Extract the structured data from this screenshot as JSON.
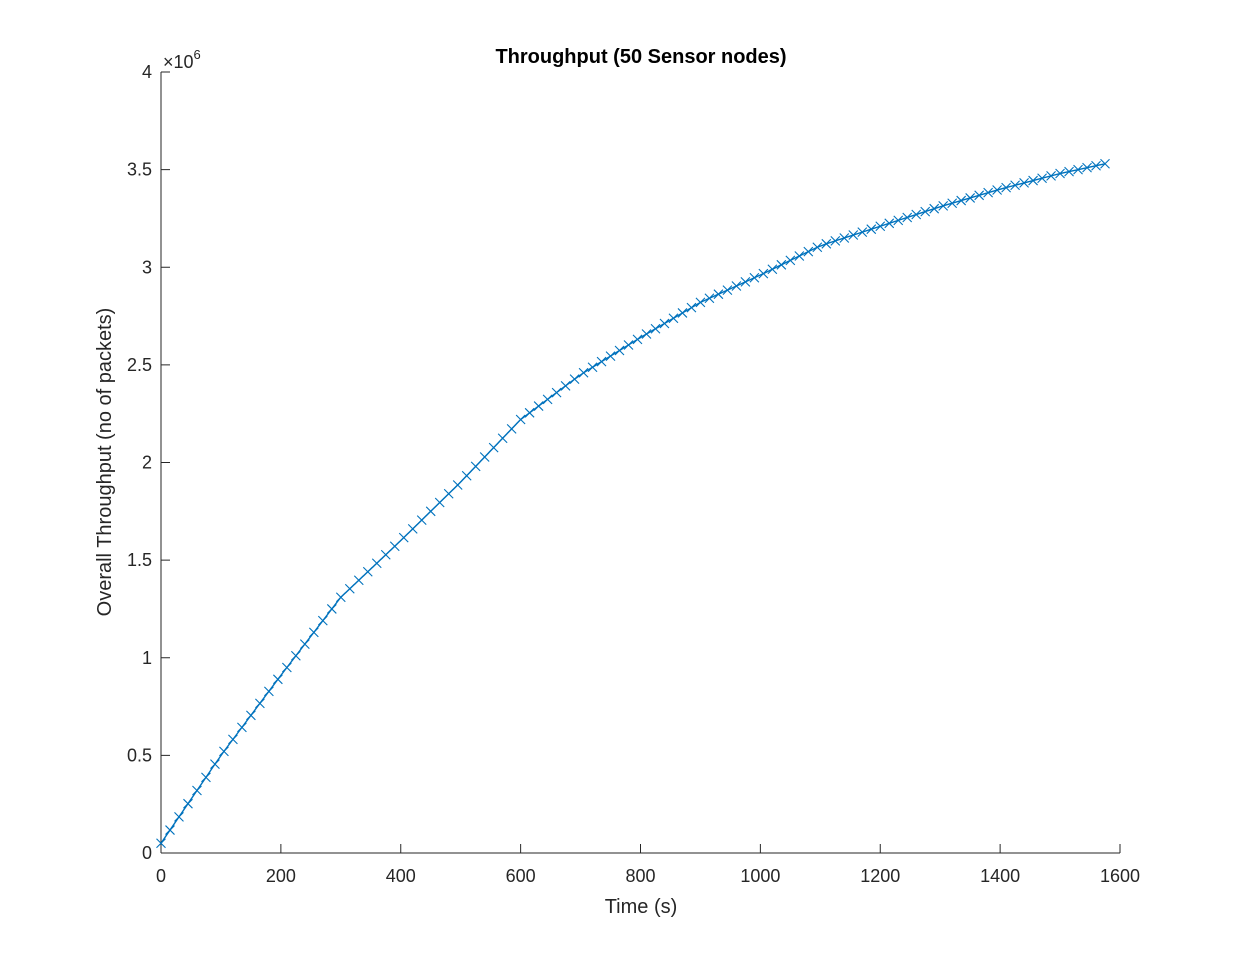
{
  "chart_data": {
    "type": "line",
    "title": "Throughput (50 Sensor nodes)",
    "xlabel": "Time (s)",
    "ylabel": "Overall Throughput (no of packets)",
    "y_multiplier_base": "×10",
    "y_multiplier_exp": "6",
    "xlim": [
      0,
      1600
    ],
    "ylim": [
      0,
      4
    ],
    "y_scale_factor": 1000000,
    "xticks": [
      "0",
      "200",
      "400",
      "600",
      "800",
      "1000",
      "1200",
      "1400",
      "1600"
    ],
    "yticks": [
      "0",
      "0.5",
      "1",
      "1.5",
      "2",
      "2.5",
      "3",
      "3.5",
      "4"
    ],
    "grid": false,
    "legend": "none",
    "series_color": "#0072BD",
    "marker": "x",
    "x_step": 15,
    "x_start": 0,
    "x_end": 1575,
    "anchors": [
      [
        0,
        0.05
      ],
      [
        100,
        0.5
      ],
      [
        200,
        0.91
      ],
      [
        300,
        1.31
      ],
      [
        400,
        1.6
      ],
      [
        500,
        1.9
      ],
      [
        600,
        2.22
      ],
      [
        700,
        2.45
      ],
      [
        800,
        2.64
      ],
      [
        900,
        2.82
      ],
      [
        1000,
        2.96
      ],
      [
        1100,
        3.11
      ],
      [
        1200,
        3.21
      ],
      [
        1300,
        3.31
      ],
      [
        1400,
        3.4
      ],
      [
        1500,
        3.48
      ],
      [
        1575,
        3.53
      ]
    ]
  }
}
